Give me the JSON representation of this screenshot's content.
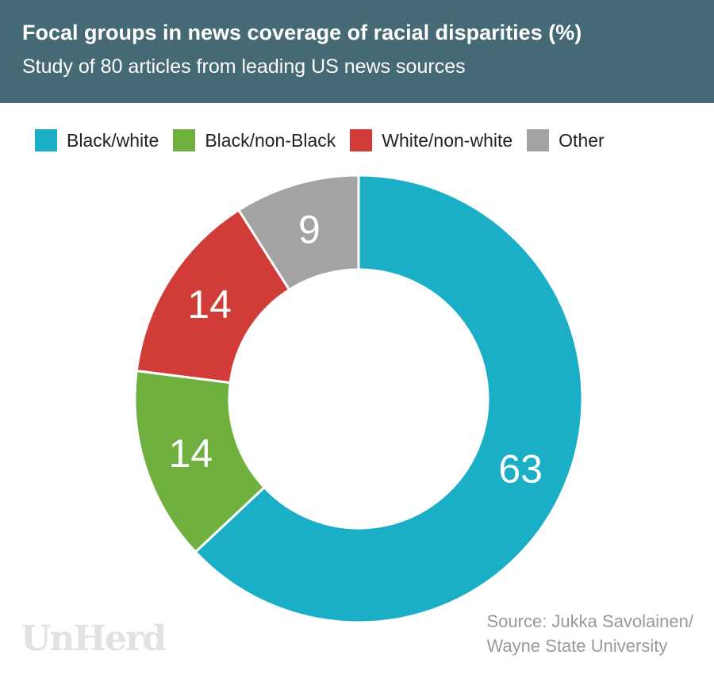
{
  "header": {
    "title": "Focal groups in news coverage of racial disparities (%)",
    "subtitle": "Study of 80 articles from leading US news sources"
  },
  "chart_data": {
    "type": "pie",
    "subtype": "donut",
    "title": "Focal groups in news coverage of racial disparities (%)",
    "subtitle": "Study of 80 articles from leading US news sources",
    "categories": [
      "Black/white",
      "Black/non-Black",
      "White/non-white",
      "Other"
    ],
    "values": [
      63,
      14,
      14,
      9
    ],
    "colors": [
      "#1aafc7",
      "#6fb03f",
      "#d13c38",
      "#a3a3a3"
    ],
    "legend_position": "top",
    "start": "top, clockwise"
  },
  "footer": {
    "source_line1": "Source: Jukka Savolainen/",
    "source_line2": "Wayne State University",
    "logo": "UnHerd"
  }
}
